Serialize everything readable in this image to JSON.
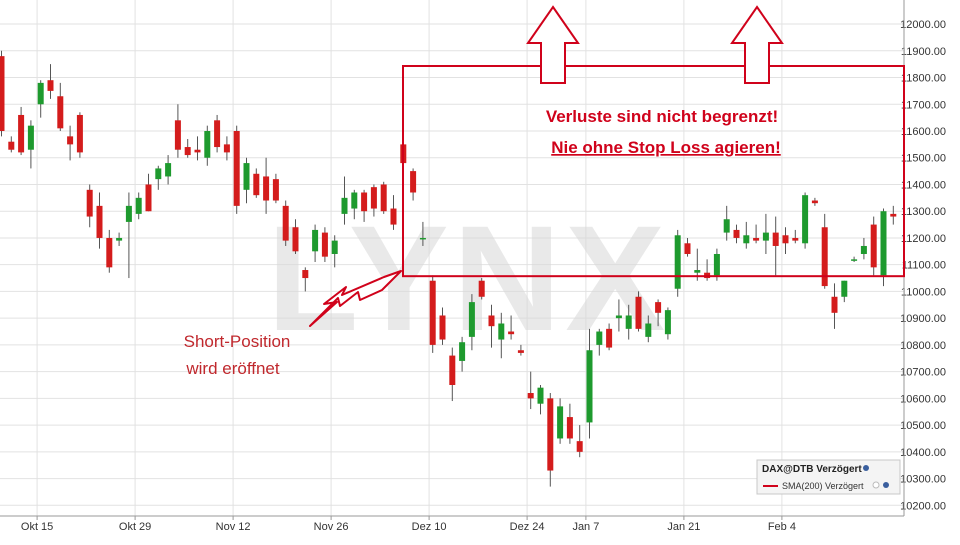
{
  "chart_data": {
    "type": "candlestick",
    "instrument": "DAX@DTB Verzögert",
    "legend": {
      "title": "DAX@DTB Verzögert",
      "entries": [
        {
          "name": "SMA(200) Verzögert",
          "color": "#d0021b"
        }
      ],
      "placement": "bottom-right"
    },
    "x_tick_labels": [
      "Okt 15",
      "Okt 29",
      "Nov 12",
      "Nov 26",
      "Dez 10",
      "Dez 24",
      "Jan 7",
      "Jan 21",
      "Feb 4"
    ],
    "y_tick_labels": [
      "10200.00",
      "10300.00",
      "10400.00",
      "10500.00",
      "10600.00",
      "10700.00",
      "10800.00",
      "10900.00",
      "11000.00",
      "11100.00",
      "11200.00",
      "11300.00",
      "11400.00",
      "11500.00",
      "11600.00",
      "11700.00",
      "11800.00",
      "11900.00",
      "12000.00"
    ],
    "ylim": [
      10160,
      12090
    ],
    "grid": true,
    "candle_colors": {
      "up": "#1e9a2e",
      "down": "#d41c1c"
    },
    "candles": [
      {
        "o": 11880,
        "h": 11900,
        "l": 11580,
        "c": 11600
      },
      {
        "o": 11560,
        "h": 11580,
        "l": 11520,
        "c": 11530
      },
      {
        "o": 11660,
        "h": 11690,
        "l": 11510,
        "c": 11520
      },
      {
        "o": 11530,
        "h": 11640,
        "l": 11460,
        "c": 11620
      },
      {
        "o": 11700,
        "h": 11790,
        "l": 11650,
        "c": 11780
      },
      {
        "o": 11790,
        "h": 11850,
        "l": 11720,
        "c": 11750
      },
      {
        "o": 11730,
        "h": 11780,
        "l": 11600,
        "c": 11610
      },
      {
        "o": 11580,
        "h": 11620,
        "l": 11490,
        "c": 11550
      },
      {
        "o": 11660,
        "h": 11670,
        "l": 11500,
        "c": 11520
      },
      {
        "o": 11380,
        "h": 11400,
        "l": 11240,
        "c": 11280
      },
      {
        "o": 11320,
        "h": 11370,
        "l": 11160,
        "c": 11200
      },
      {
        "o": 11200,
        "h": 11230,
        "l": 11070,
        "c": 11090
      },
      {
        "o": 11190,
        "h": 11220,
        "l": 11170,
        "c": 11200
      },
      {
        "o": 11260,
        "h": 11370,
        "l": 11050,
        "c": 11320
      },
      {
        "o": 11290,
        "h": 11370,
        "l": 11270,
        "c": 11350
      },
      {
        "o": 11400,
        "h": 11440,
        "l": 11300,
        "c": 11300
      },
      {
        "o": 11420,
        "h": 11470,
        "l": 11380,
        "c": 11460
      },
      {
        "o": 11430,
        "h": 11510,
        "l": 11400,
        "c": 11480
      },
      {
        "o": 11640,
        "h": 11700,
        "l": 11500,
        "c": 11530
      },
      {
        "o": 11540,
        "h": 11570,
        "l": 11500,
        "c": 11510
      },
      {
        "o": 11530,
        "h": 11580,
        "l": 11490,
        "c": 11520
      },
      {
        "o": 11500,
        "h": 11620,
        "l": 11470,
        "c": 11600
      },
      {
        "o": 11640,
        "h": 11660,
        "l": 11520,
        "c": 11540
      },
      {
        "o": 11550,
        "h": 11580,
        "l": 11490,
        "c": 11520
      },
      {
        "o": 11600,
        "h": 11620,
        "l": 11290,
        "c": 11320
      },
      {
        "o": 11380,
        "h": 11500,
        "l": 11330,
        "c": 11480
      },
      {
        "o": 11440,
        "h": 11460,
        "l": 11350,
        "c": 11360
      },
      {
        "o": 11430,
        "h": 11500,
        "l": 11290,
        "c": 11340
      },
      {
        "o": 11420,
        "h": 11440,
        "l": 11330,
        "c": 11340
      },
      {
        "o": 11320,
        "h": 11340,
        "l": 11170,
        "c": 11190
      },
      {
        "o": 11240,
        "h": 11270,
        "l": 11140,
        "c": 11150
      },
      {
        "o": 11080,
        "h": 11090,
        "l": 11000,
        "c": 11050
      },
      {
        "o": 11150,
        "h": 11250,
        "l": 11110,
        "c": 11230
      },
      {
        "o": 11220,
        "h": 11240,
        "l": 11110,
        "c": 11130
      },
      {
        "o": 11140,
        "h": 11210,
        "l": 11090,
        "c": 11190
      },
      {
        "o": 11290,
        "h": 11430,
        "l": 11250,
        "c": 11350
      },
      {
        "o": 11310,
        "h": 11380,
        "l": 11270,
        "c": 11370
      },
      {
        "o": 11370,
        "h": 11380,
        "l": 11260,
        "c": 11300
      },
      {
        "o": 11390,
        "h": 11400,
        "l": 11280,
        "c": 11310
      },
      {
        "o": 11400,
        "h": 11410,
        "l": 11290,
        "c": 11300
      },
      {
        "o": 11310,
        "h": 11360,
        "l": 11230,
        "c": 11250
      },
      {
        "o": 11550,
        "h": 11570,
        "l": 11460,
        "c": 11480
      },
      {
        "o": 11450,
        "h": 11460,
        "l": 11340,
        "c": 11370
      },
      {
        "o": 11200,
        "h": 11260,
        "l": 11170,
        "c": 11200
      },
      {
        "o": 11040,
        "h": 11060,
        "l": 10770,
        "c": 10800
      },
      {
        "o": 10910,
        "h": 10940,
        "l": 10800,
        "c": 10820
      },
      {
        "o": 10760,
        "h": 10790,
        "l": 10590,
        "c": 10650
      },
      {
        "o": 10740,
        "h": 10830,
        "l": 10700,
        "c": 10810
      },
      {
        "o": 10830,
        "h": 10990,
        "l": 10780,
        "c": 10960
      },
      {
        "o": 11040,
        "h": 11050,
        "l": 10970,
        "c": 10980
      },
      {
        "o": 10910,
        "h": 10950,
        "l": 10790,
        "c": 10870
      },
      {
        "o": 10820,
        "h": 10920,
        "l": 10750,
        "c": 10880
      },
      {
        "o": 10850,
        "h": 10910,
        "l": 10820,
        "c": 10840
      },
      {
        "o": 10780,
        "h": 10800,
        "l": 10760,
        "c": 10770
      },
      {
        "o": 10620,
        "h": 10700,
        "l": 10560,
        "c": 10600
      },
      {
        "o": 10580,
        "h": 10650,
        "l": 10540,
        "c": 10640
      },
      {
        "o": 10600,
        "h": 10620,
        "l": 10270,
        "c": 10330
      },
      {
        "o": 10450,
        "h": 10600,
        "l": 10430,
        "c": 10570
      },
      {
        "o": 10530,
        "h": 10580,
        "l": 10430,
        "c": 10450
      },
      {
        "o": 10440,
        "h": 10500,
        "l": 10380,
        "c": 10400
      },
      {
        "o": 10510,
        "h": 10860,
        "l": 10450,
        "c": 10780
      },
      {
        "o": 10800,
        "h": 10860,
        "l": 10760,
        "c": 10850
      },
      {
        "o": 10860,
        "h": 10880,
        "l": 10780,
        "c": 10790
      },
      {
        "o": 10900,
        "h": 10970,
        "l": 10850,
        "c": 10910
      },
      {
        "o": 10860,
        "h": 10950,
        "l": 10820,
        "c": 10910
      },
      {
        "o": 10980,
        "h": 11000,
        "l": 10850,
        "c": 10860
      },
      {
        "o": 10830,
        "h": 10910,
        "l": 10810,
        "c": 10880
      },
      {
        "o": 10960,
        "h": 10970,
        "l": 10870,
        "c": 10920
      },
      {
        "o": 10840,
        "h": 10940,
        "l": 10820,
        "c": 10930
      },
      {
        "o": 11010,
        "h": 11230,
        "l": 10980,
        "c": 11210
      },
      {
        "o": 11180,
        "h": 11200,
        "l": 11130,
        "c": 11140
      },
      {
        "o": 11070,
        "h": 11160,
        "l": 11040,
        "c": 11080
      },
      {
        "o": 11070,
        "h": 11120,
        "l": 11040,
        "c": 11050
      },
      {
        "o": 11060,
        "h": 11160,
        "l": 11040,
        "c": 11140
      },
      {
        "o": 11220,
        "h": 11320,
        "l": 11190,
        "c": 11270
      },
      {
        "o": 11230,
        "h": 11250,
        "l": 11180,
        "c": 11200
      },
      {
        "o": 11180,
        "h": 11260,
        "l": 11160,
        "c": 11210
      },
      {
        "o": 11200,
        "h": 11250,
        "l": 11180,
        "c": 11190
      },
      {
        "o": 11190,
        "h": 11290,
        "l": 11140,
        "c": 11220
      },
      {
        "o": 11220,
        "h": 11280,
        "l": 11060,
        "c": 11170
      },
      {
        "o": 11210,
        "h": 11240,
        "l": 11140,
        "c": 11180
      },
      {
        "o": 11200,
        "h": 11230,
        "l": 11180,
        "c": 11190
      },
      {
        "o": 11180,
        "h": 11370,
        "l": 11160,
        "c": 11360
      },
      {
        "o": 11340,
        "h": 11350,
        "l": 11320,
        "c": 11330
      },
      {
        "o": 11240,
        "h": 11290,
        "l": 11010,
        "c": 11020
      },
      {
        "o": 10980,
        "h": 11030,
        "l": 10860,
        "c": 10920
      },
      {
        "o": 10980,
        "h": 11040,
        "l": 10960,
        "c": 11040
      },
      {
        "o": 11120,
        "h": 11130,
        "l": 11110,
        "c": 11120
      },
      {
        "o": 11140,
        "h": 11200,
        "l": 11120,
        "c": 11170
      },
      {
        "o": 11250,
        "h": 11280,
        "l": 11060,
        "c": 11090
      },
      {
        "o": 11060,
        "h": 11310,
        "l": 11020,
        "c": 11300
      },
      {
        "o": 11290,
        "h": 11320,
        "l": 11250,
        "c": 11280
      }
    ],
    "sma200_level": 11057
  },
  "annotations": {
    "loss_warning": "Verluste sind nicht begrenzt!",
    "stop_loss_warning": "Nie ohne Stop Loss agieren!",
    "short_note_line1": "Short-Position",
    "short_note_line2": "wird eröffnet"
  },
  "watermark": "LYNX",
  "colors": {
    "annotation": "#d0021b",
    "up": "#1e9a2e",
    "down": "#d41c1c",
    "grid": "#e2e2e2"
  }
}
